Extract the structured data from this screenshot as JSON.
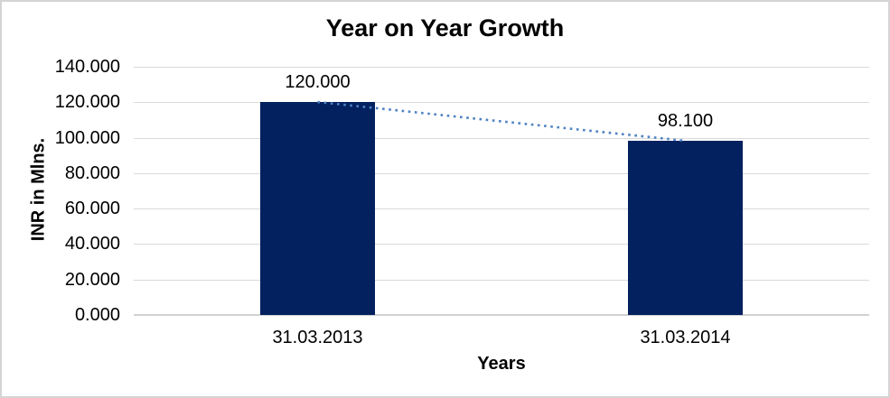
{
  "chart_data": {
    "type": "bar",
    "title": "Year on Year Growth",
    "xlabel": "Years",
    "ylabel": "INR in Mlns.",
    "categories": [
      "31.03.2013",
      "31.03.2014"
    ],
    "values": [
      120.0,
      98.1
    ],
    "data_labels": [
      "120.000",
      "98.100"
    ],
    "y_tick_labels": [
      "140.000",
      "120.000",
      "100.000",
      "80.000",
      "60.000",
      "40.000",
      "20.000",
      "0.000"
    ],
    "ylim": [
      0,
      140
    ],
    "grid": true,
    "legend": "none",
    "trendline": {
      "type": "linear",
      "style": "dotted",
      "from_value": 120.0,
      "to_value": 98.1
    },
    "colors": {
      "bar": "#02215E",
      "trendline": "#4E82C4",
      "gridline": "#D9D9D9",
      "axis_line": "#D2D2D2",
      "text": "#000000",
      "background": "#FFFFFF",
      "border": "#D4D4D4"
    }
  }
}
